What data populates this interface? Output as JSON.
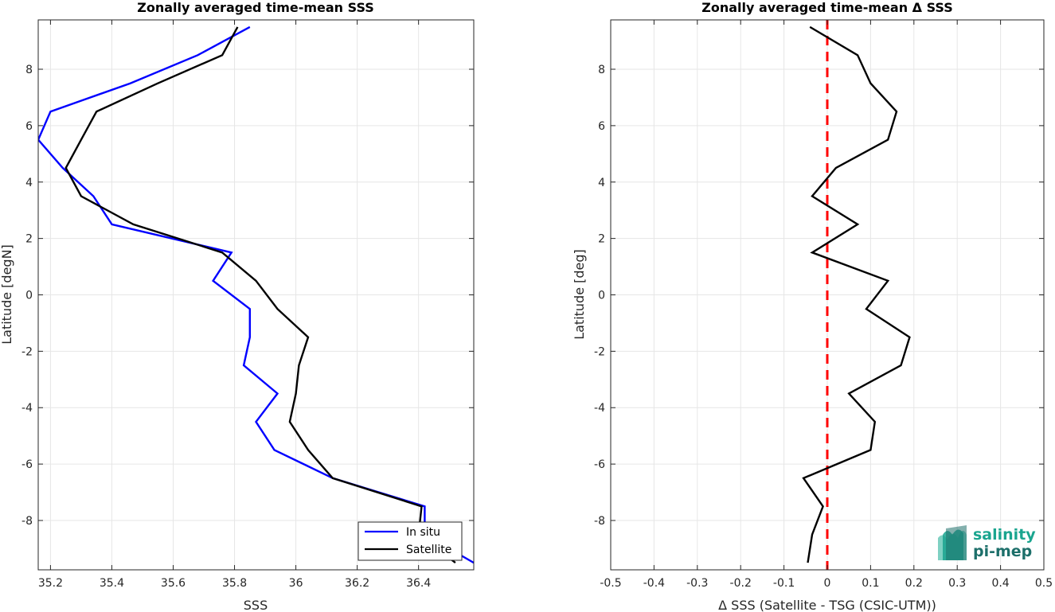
{
  "chart_data": [
    {
      "type": "line",
      "title": "Zonally averaged time-mean SSS",
      "xlabel": "SSS",
      "ylabel": "Latitude [degN]",
      "xlim": [
        35.16,
        36.58
      ],
      "ylim": [
        -9.75,
        9.75
      ],
      "xticks": [
        35.2,
        35.4,
        35.6,
        35.8,
        36,
        36.2,
        36.4
      ],
      "xtick_labels": [
        "35.2",
        "35.4",
        "35.6",
        "35.8",
        "36",
        "36.2",
        "36.4"
      ],
      "yticks": [
        -8,
        -6,
        -4,
        -2,
        0,
        2,
        4,
        6,
        8
      ],
      "ytick_labels": [
        "-8",
        "-6",
        "-4",
        "-2",
        "0",
        "2",
        "4",
        "6",
        "8"
      ],
      "grid": true,
      "legend": {
        "position": "bottom-right",
        "entries": [
          "In situ",
          "Satellite"
        ]
      },
      "series": [
        {
          "name": "In situ",
          "color": "#0000ff",
          "points": [
            [
              35.85,
              9.5
            ],
            [
              35.68,
              8.5
            ],
            [
              35.46,
              7.5
            ],
            [
              35.2,
              6.5
            ],
            [
              35.16,
              5.5
            ],
            [
              35.24,
              4.5
            ],
            [
              35.34,
              3.5
            ],
            [
              35.4,
              2.5
            ],
            [
              35.79,
              1.5
            ],
            [
              35.73,
              0.5
            ],
            [
              35.85,
              -0.5
            ],
            [
              35.85,
              -1.5
            ],
            [
              35.83,
              -2.5
            ],
            [
              35.94,
              -3.5
            ],
            [
              35.87,
              -4.5
            ],
            [
              35.93,
              -5.5
            ],
            [
              36.12,
              -6.5
            ],
            [
              36.42,
              -7.5
            ],
            [
              36.42,
              -8.5
            ],
            [
              36.58,
              -9.5
            ]
          ]
        },
        {
          "name": "Satellite",
          "color": "#000000",
          "points": [
            [
              35.81,
              9.5
            ],
            [
              35.76,
              8.5
            ],
            [
              35.55,
              7.5
            ],
            [
              35.35,
              6.5
            ],
            [
              35.3,
              5.5
            ],
            [
              35.25,
              4.5
            ],
            [
              35.3,
              3.5
            ],
            [
              35.47,
              2.5
            ],
            [
              35.76,
              1.5
            ],
            [
              35.87,
              0.5
            ],
            [
              35.94,
              -0.5
            ],
            [
              36.04,
              -1.5
            ],
            [
              36.01,
              -2.5
            ],
            [
              36.0,
              -3.5
            ],
            [
              35.98,
              -4.5
            ],
            [
              36.04,
              -5.5
            ],
            [
              36.12,
              -6.5
            ],
            [
              36.41,
              -7.5
            ],
            [
              36.4,
              -8.5
            ],
            [
              36.52,
              -9.5
            ]
          ]
        }
      ]
    },
    {
      "type": "line",
      "title": "Zonally averaged time-mean Δ SSS",
      "xlabel": "Δ SSS (Satellite - TSG (CSIC-UTM))",
      "ylabel": "Latitude [deg]",
      "xlim": [
        -0.5,
        0.5
      ],
      "ylim": [
        -9.75,
        9.75
      ],
      "xticks": [
        -0.5,
        -0.4,
        -0.3,
        -0.2,
        -0.1,
        0,
        0.1,
        0.2,
        0.3,
        0.4,
        0.5
      ],
      "xtick_labels": [
        "-0.5",
        "-0.4",
        "-0.3",
        "-0.2",
        "-0.1",
        "0",
        "0.1",
        "0.2",
        "0.3",
        "0.4",
        "0.5"
      ],
      "yticks": [
        -8,
        -6,
        -4,
        -2,
        0,
        2,
        4,
        6,
        8
      ],
      "ytick_labels": [
        "-8",
        "-6",
        "-4",
        "-2",
        "0",
        "2",
        "4",
        "6",
        "8"
      ],
      "grid": true,
      "reference_line": {
        "x": 0,
        "color": "#ff0000",
        "style": "dashed"
      },
      "series": [
        {
          "color": "#000000",
          "points": [
            [
              -0.04,
              9.5
            ],
            [
              0.07,
              8.5
            ],
            [
              0.1,
              7.5
            ],
            [
              0.16,
              6.5
            ],
            [
              0.14,
              5.5
            ],
            [
              0.02,
              4.5
            ],
            [
              -0.035,
              3.5
            ],
            [
              0.07,
              2.5
            ],
            [
              -0.035,
              1.5
            ],
            [
              0.14,
              0.5
            ],
            [
              0.09,
              -0.5
            ],
            [
              0.19,
              -1.5
            ],
            [
              0.17,
              -2.5
            ],
            [
              0.05,
              -3.5
            ],
            [
              0.11,
              -4.5
            ],
            [
              0.1,
              -5.5
            ],
            [
              -0.055,
              -6.5
            ],
            [
              -0.01,
              -7.5
            ],
            [
              -0.035,
              -8.5
            ],
            [
              -0.045,
              -9.5
            ]
          ]
        }
      ]
    }
  ],
  "logo": {
    "line1": "salinity",
    "line2": "pi-mep",
    "colors": [
      "#1aa58f",
      "#1d6f6a",
      "#7fd1c3"
    ]
  }
}
